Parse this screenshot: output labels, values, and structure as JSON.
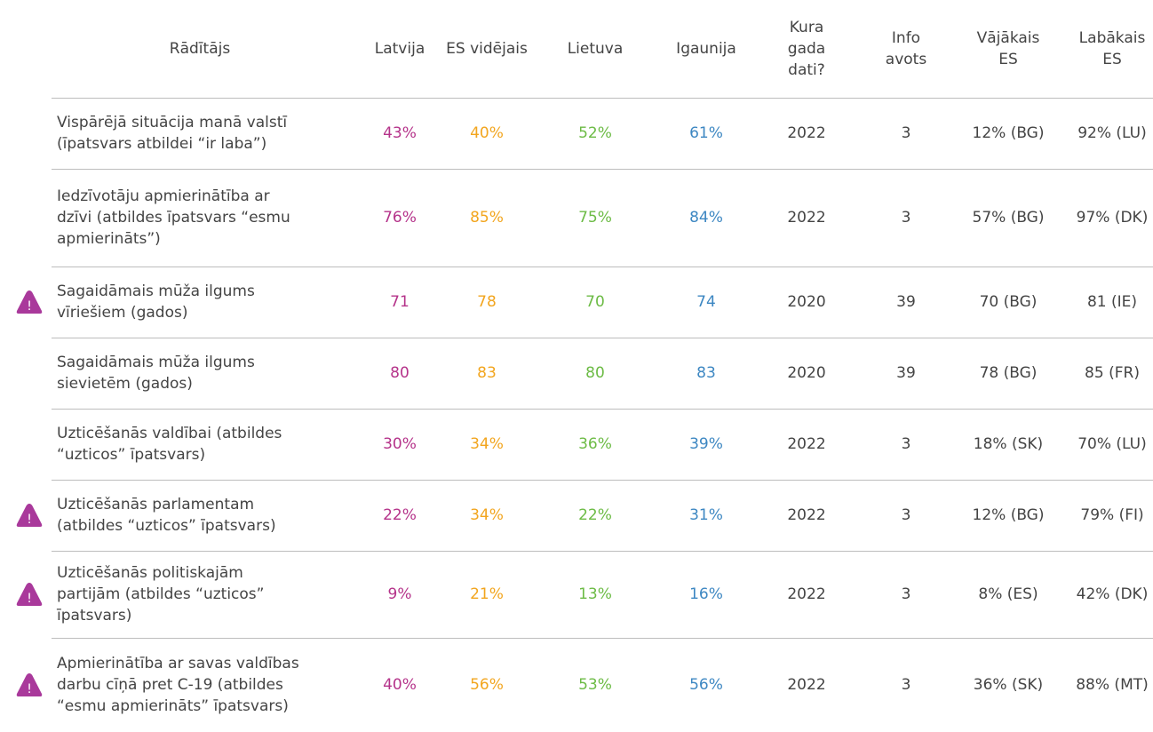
{
  "table": {
    "header": [
      [
        "Rādītājs"
      ],
      [
        "Latvija"
      ],
      [
        "ES vidējais"
      ],
      [
        "Lietuva"
      ],
      [
        "Igaunija"
      ],
      [
        "Kura",
        "gada",
        "dati?"
      ],
      [
        "Info",
        "avots"
      ],
      [
        "Vājākais",
        "ES"
      ],
      [
        "Labākais",
        "ES"
      ]
    ],
    "colors": [
      "#444444",
      "#b5338a",
      "#f2a51e",
      "#6cbb45",
      "#3d87c2",
      "#444444",
      "#444444",
      "#444444",
      "#444444"
    ],
    "warning_icon": "!",
    "warning_color": "#a9399b",
    "rows": [
      {
        "label": [
          "Vispārējā situācija manā valstī",
          "(īpatsvars atbildei “ir laba”)"
        ],
        "warning": false,
        "values": [
          "43%",
          "40%",
          "52%",
          "61%",
          "2022",
          "3",
          "12% (BG)",
          "92% (LU)"
        ]
      },
      {
        "label": [
          "Iedzīvotāju apmierinātība ar",
          "dzīvi (atbildes īpatsvars “esmu",
          "apmierināts”)"
        ],
        "warning": false,
        "values": [
          "76%",
          "85%",
          "75%",
          "84%",
          "2022",
          "3",
          "57% (BG)",
          "97% (DK)"
        ]
      },
      {
        "label": [
          "Sagaidāmais mūža ilgums",
          "vīriešiem (gados)"
        ],
        "warning": true,
        "values": [
          "71",
          "78",
          "70",
          "74",
          "2020",
          "39",
          "70 (BG)",
          "81 (IE)"
        ]
      },
      {
        "label": [
          "Sagaidāmais mūža ilgums",
          "sievietēm (gados)"
        ],
        "warning": false,
        "values": [
          "80",
          "83",
          "80",
          "83",
          "2020",
          "39",
          "78 (BG)",
          "85 (FR)"
        ]
      },
      {
        "label": [
          "Uzticēšanās valdībai (atbildes",
          "“uzticos” īpatsvars)"
        ],
        "warning": false,
        "values": [
          "30%",
          "34%",
          "36%",
          "39%",
          "2022",
          "3",
          "18% (SK)",
          "70% (LU)"
        ]
      },
      {
        "label": [
          "Uzticēšanās parlamentam",
          "(atbildes “uzticos” īpatsvars)"
        ],
        "warning": true,
        "values": [
          "22%",
          "34%",
          "22%",
          "31%",
          "2022",
          "3",
          "12% (BG)",
          "79% (FI)"
        ]
      },
      {
        "label": [
          "Uzticēšanās politiskajām",
          "partijām (atbildes “uzticos”",
          "īpatsvars)"
        ],
        "warning": true,
        "values": [
          "9%",
          "21%",
          "13%",
          "16%",
          "2022",
          "3",
          "8% (ES)",
          "42% (DK)"
        ]
      },
      {
        "label": [
          "Apmierinātība ar savas valdības",
          "darbu cīņā pret C-19 (atbildes",
          "“esmu apmierināts” īpatsvars)"
        ],
        "warning": true,
        "values": [
          "40%",
          "56%",
          "53%",
          "56%",
          "2022",
          "3",
          "36% (SK)",
          "88% (MT)"
        ]
      }
    ]
  }
}
